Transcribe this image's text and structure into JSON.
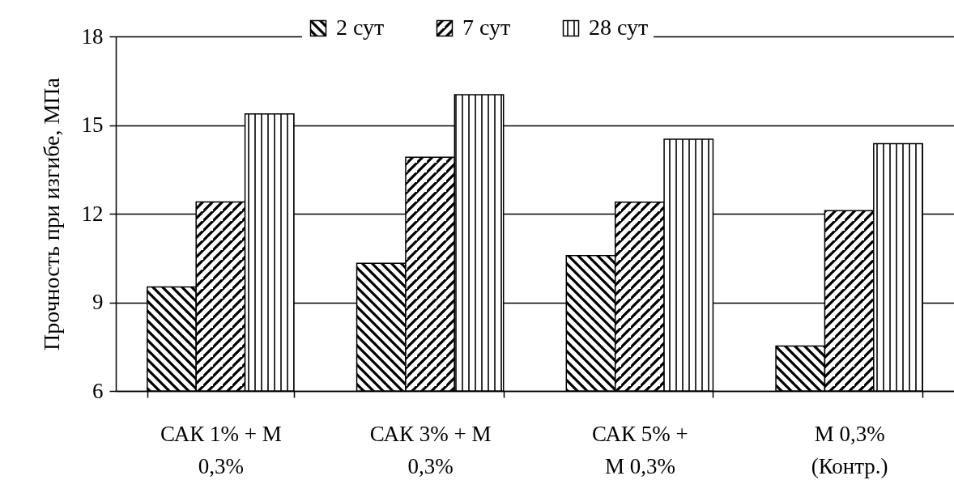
{
  "chart_data": {
    "type": "bar",
    "ylabel": "Прочность при изгибе, МПа",
    "categories": [
      "САК 1% +   М\n0,3%",
      "САК 3% +   М\n0,3%",
      "САК 5% +\nМ 0,3%",
      "М 0,3%\n(Контр.)"
    ],
    "series": [
      {
        "name": "2 сут",
        "color": "#000000",
        "values": [
          9.52,
          10.32,
          10.58,
          7.52
        ]
      },
      {
        "name": "7 сут",
        "color": "#000000",
        "values": [
          12.4,
          13.91,
          12.39,
          12.1
        ]
      },
      {
        "name": "28 сут",
        "color": "#000000",
        "values": [
          15.38,
          16.03,
          14.52,
          14.37
        ]
      }
    ],
    "ylim": [
      6,
      18
    ],
    "yticks": [
      6,
      9,
      12,
      15,
      18
    ],
    "grid": "y",
    "legend": "top"
  }
}
